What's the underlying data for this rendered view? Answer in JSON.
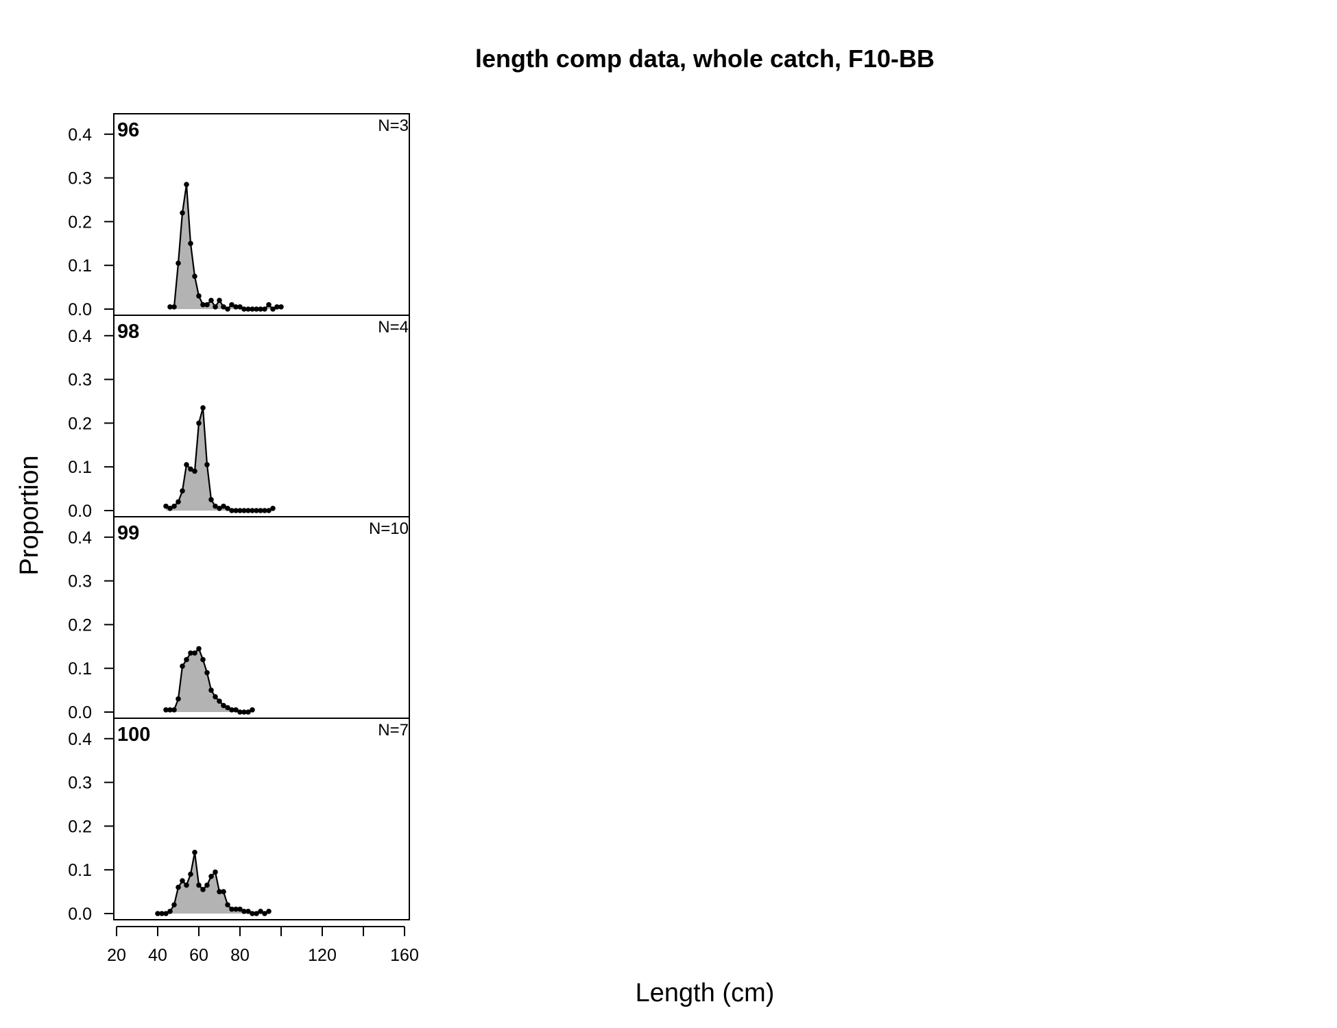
{
  "chart_data": {
    "type": "area",
    "title": "length comp data, whole catch, F10-BB",
    "xlabel": "Length (cm)",
    "ylabel": "Proportion",
    "xlim": [
      20,
      160
    ],
    "ylim": [
      0,
      0.45
    ],
    "x_ticks": [
      20,
      40,
      60,
      80,
      100,
      120,
      140,
      160
    ],
    "x_tick_labels": [
      "20",
      "40",
      "60",
      "80",
      "",
      "120",
      "",
      "160"
    ],
    "y_ticks": [
      0.0,
      0.1,
      0.2,
      0.3,
      0.4
    ],
    "y_tick_labels": [
      "0.0",
      "0.1",
      "0.2",
      "0.3",
      "0.4"
    ],
    "fill_color": "#b3b3b3",
    "line_color": "#000000",
    "grid": false,
    "panels": [
      {
        "label": "96",
        "n_label": "N=3",
        "x": [
          46,
          48,
          50,
          52,
          54,
          56,
          58,
          60,
          62,
          64,
          66,
          68,
          70,
          72,
          74,
          76,
          78,
          80,
          82,
          84,
          86,
          88,
          90,
          92,
          94,
          96,
          98,
          100
        ],
        "y": [
          0.005,
          0.005,
          0.105,
          0.22,
          0.285,
          0.15,
          0.075,
          0.03,
          0.01,
          0.01,
          0.02,
          0.005,
          0.02,
          0.005,
          0.0,
          0.01,
          0.005,
          0.005,
          0.0,
          0.0,
          0.0,
          0.0,
          0.0,
          0.0,
          0.01,
          0.0,
          0.005,
          0.005
        ]
      },
      {
        "label": "98",
        "n_label": "N=4",
        "x": [
          44,
          46,
          48,
          50,
          52,
          54,
          56,
          58,
          60,
          62,
          64,
          66,
          68,
          70,
          72,
          74,
          76,
          78,
          80,
          82,
          84,
          86,
          88,
          90,
          92,
          94,
          96
        ],
        "y": [
          0.01,
          0.005,
          0.01,
          0.02,
          0.045,
          0.105,
          0.095,
          0.09,
          0.2,
          0.235,
          0.105,
          0.025,
          0.01,
          0.005,
          0.01,
          0.005,
          0.0,
          0.0,
          0.0,
          0.0,
          0.0,
          0.0,
          0.0,
          0.0,
          0.0,
          0.0,
          0.005
        ]
      },
      {
        "label": "99",
        "n_label": "N=10",
        "x": [
          44,
          46,
          48,
          50,
          52,
          54,
          56,
          58,
          60,
          62,
          64,
          66,
          68,
          70,
          72,
          74,
          76,
          78,
          80,
          82,
          84,
          86
        ],
        "y": [
          0.005,
          0.005,
          0.005,
          0.03,
          0.105,
          0.12,
          0.135,
          0.135,
          0.145,
          0.12,
          0.09,
          0.05,
          0.035,
          0.025,
          0.015,
          0.01,
          0.005,
          0.005,
          0.0,
          0.0,
          0.0,
          0.005
        ]
      },
      {
        "label": "100",
        "n_label": "N=7",
        "x": [
          40,
          42,
          44,
          46,
          48,
          50,
          52,
          54,
          56,
          58,
          60,
          62,
          64,
          66,
          68,
          70,
          72,
          74,
          76,
          78,
          80,
          82,
          84,
          86,
          88,
          90,
          92,
          94
        ],
        "y": [
          0.0,
          0.0,
          0.0,
          0.005,
          0.02,
          0.06,
          0.075,
          0.065,
          0.09,
          0.14,
          0.065,
          0.055,
          0.065,
          0.085,
          0.095,
          0.05,
          0.05,
          0.02,
          0.01,
          0.01,
          0.01,
          0.005,
          0.005,
          0.0,
          0.0,
          0.005,
          0.0,
          0.005
        ]
      }
    ]
  }
}
